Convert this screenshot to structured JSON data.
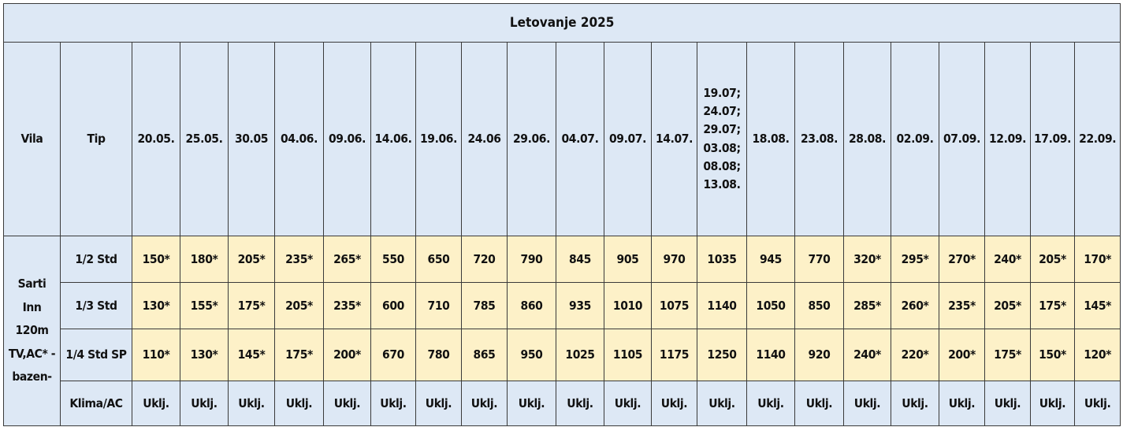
{
  "title": "Letovanje 2025",
  "header": {
    "vila": "Vila",
    "tip": "Tip",
    "dates": [
      "20.05.",
      "25.05.",
      "30.05",
      "04.06.",
      "09.06.",
      "14.06.",
      "19.06.",
      "24.06",
      "29.06.",
      "04.07.",
      "09.07.",
      "14.07.",
      "19.07;\n24.07;\n29.07;\n03.08;\n08.08;\n13.08.",
      "18.08.",
      "23.08.",
      "28.08.",
      "02.09.",
      "07.09.",
      "12.09.",
      "17.09.",
      "22.09."
    ]
  },
  "villa": "Sarti Inn 120m TV,AC* - bazen-",
  "rows": [
    {
      "tip": "1/2 Std",
      "values": [
        "150*",
        "180*",
        "205*",
        "235*",
        "265*",
        "550",
        "650",
        "720",
        "790",
        "845",
        "905",
        "970",
        "1035",
        "945",
        "770",
        "320*",
        "295*",
        "270*",
        "240*",
        "205*",
        "170*"
      ]
    },
    {
      "tip": "1/3 Std",
      "values": [
        "130*",
        "155*",
        "175*",
        "205*",
        "235*",
        "600",
        "710",
        "785",
        "860",
        "935",
        "1010",
        "1075",
        "1140",
        "1050",
        "850",
        "285*",
        "260*",
        "235*",
        "205*",
        "175*",
        "145*"
      ]
    },
    {
      "tip": "1/4 Std SP",
      "values": [
        "110*",
        "130*",
        "145*",
        "175*",
        "200*",
        "670",
        "780",
        "865",
        "950",
        "1025",
        "1105",
        "1175",
        "1250",
        "1140",
        "920",
        "240*",
        "220*",
        "200*",
        "175*",
        "150*",
        "120*"
      ]
    }
  ],
  "klima": {
    "tip": "Klima/AC",
    "values": [
      "Uklj.",
      "Uklj.",
      "Uklj.",
      "Uklj.",
      "Uklj.",
      "Uklj.",
      "Uklj.",
      "Uklj.",
      "Uklj.",
      "Uklj.",
      "Uklj.",
      "Uklj.",
      "Uklj.",
      "Uklj.",
      "Uklj.",
      "Uklj.",
      "Uklj.",
      "Uklj.",
      "Uklj.",
      "Uklj.",
      "Uklj."
    ]
  }
}
